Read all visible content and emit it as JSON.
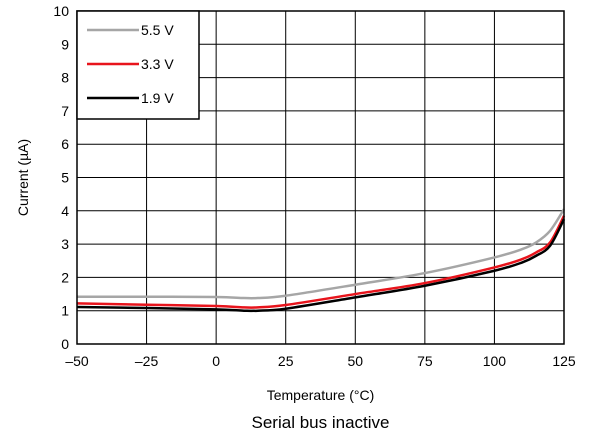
{
  "chart_data": {
    "type": "line",
    "caption": "Serial bus inactive",
    "xlabel": "Temperature (°C)",
    "ylabel": "Current (µA)",
    "xlim": [
      -50,
      125
    ],
    "ylim": [
      0,
      10
    ],
    "x_ticks": [
      -50,
      -25,
      0,
      25,
      50,
      75,
      100,
      125
    ],
    "x_tick_labels": [
      "–50",
      "–25",
      "0",
      "25",
      "50",
      "75",
      "100",
      "125"
    ],
    "y_ticks": [
      0,
      1,
      2,
      3,
      4,
      5,
      6,
      7,
      8,
      9,
      10
    ],
    "y_tick_labels": [
      "0",
      "1",
      "2",
      "3",
      "4",
      "5",
      "6",
      "7",
      "8",
      "9",
      "10"
    ],
    "grid": true,
    "legend_position": "top-left",
    "series": [
      {
        "name": "5.5 V",
        "color": "#a6a6a6",
        "x": [
          -50,
          -25,
          0,
          10,
          15,
          25,
          50,
          75,
          100,
          110,
          115,
          120,
          125
        ],
        "y": [
          1.42,
          1.42,
          1.41,
          1.38,
          1.38,
          1.45,
          1.78,
          2.13,
          2.6,
          2.85,
          3.05,
          3.4,
          4.05
        ]
      },
      {
        "name": "3.3 V",
        "color": "#e8141c",
        "x": [
          -50,
          -25,
          0,
          10,
          15,
          25,
          50,
          75,
          100,
          110,
          115,
          120,
          125
        ],
        "y": [
          1.22,
          1.18,
          1.14,
          1.1,
          1.1,
          1.17,
          1.5,
          1.83,
          2.3,
          2.55,
          2.75,
          3.05,
          3.85
        ]
      },
      {
        "name": "1.9 V",
        "color": "#000000",
        "x": [
          -50,
          -25,
          0,
          10,
          15,
          25,
          50,
          75,
          100,
          110,
          115,
          120,
          125
        ],
        "y": [
          1.11,
          1.08,
          1.04,
          1.0,
          1.0,
          1.06,
          1.4,
          1.75,
          2.2,
          2.45,
          2.65,
          2.95,
          3.75
        ]
      }
    ]
  }
}
